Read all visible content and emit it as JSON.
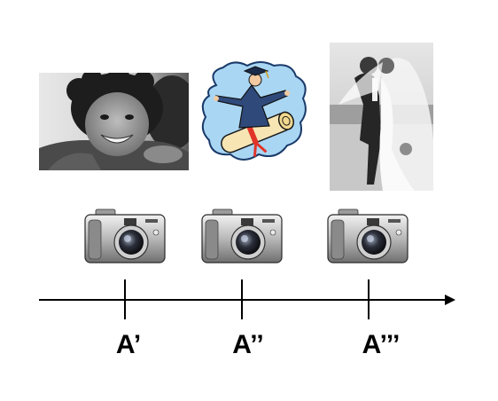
{
  "timeline": {
    "labels": [
      "A’",
      "A’’",
      "A’’’"
    ]
  },
  "pictures": [
    {
      "icon": "child-hug-photo"
    },
    {
      "icon": "graduate-surfing-diploma-clipart"
    },
    {
      "icon": "wedding-couple-photo"
    }
  ],
  "cameras": [
    {
      "icon": "digital-camera-icon"
    },
    {
      "icon": "digital-camera-icon"
    },
    {
      "icon": "digital-camera-icon"
    }
  ],
  "colors": {
    "axis": "#000000",
    "cloud": "#a9d6f3",
    "scroll": "#f7e6b4",
    "ribbon": "#e1352a",
    "gown": "#2f4a7a"
  }
}
